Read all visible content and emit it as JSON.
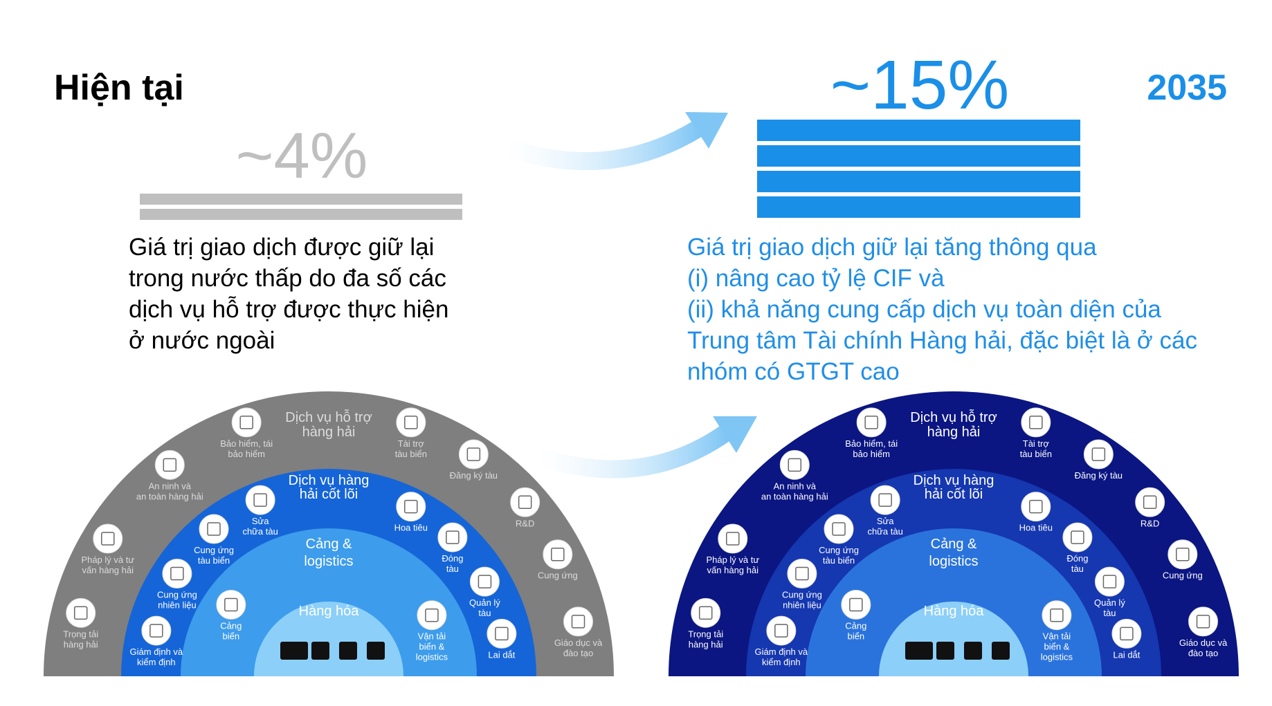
{
  "current": {
    "title": "Hiện tại",
    "share": "~4%",
    "lines": [
      "Giá trị giao dịch được giữ lại",
      "trong nước thấp do đa số các",
      "dịch vụ hỗ trợ được thực hiện",
      "ở nước ngoài"
    ]
  },
  "target": {
    "year": "2035",
    "share": "~15%",
    "lines": [
      "Giá trị giao dịch giữ lại tăng thông qua",
      "(i) nâng cao tỷ lệ CIF và",
      "(ii) khả năng cung cấp dịch vụ toàn diện của",
      "Trung tâm Tài chính Hàng hải, đặc biệt là ở các",
      "nhóm có GTGT cao"
    ]
  },
  "diagram": {
    "rings": [
      {
        "title": [
          "Dịch vụ hỗ trợ",
          "hàng hải"
        ],
        "items": [
          [
            "Trọng tải",
            "hàng hải"
          ],
          [
            "Pháp lý và tư",
            "vấn hàng hải"
          ],
          [
            "An ninh và",
            "an toàn hàng hải"
          ],
          [
            "Bảo hiểm, tái",
            "bảo hiểm"
          ],
          [
            "Tài  trợ",
            "tàu biển"
          ],
          [
            "Đăng ký tàu"
          ],
          [
            "R&D"
          ],
          [
            "Cung ứng"
          ],
          [
            "Giáo dục và",
            "đào tạo"
          ]
        ]
      },
      {
        "title": [
          "Dịch vụ hàng",
          "hải cốt lõi"
        ],
        "items": [
          [
            "Giám định và",
            "kiểm định"
          ],
          [
            "Cung ứng",
            "nhiên liệu"
          ],
          [
            "Cung ứng",
            "tàu biển"
          ],
          [
            "Sửa",
            "chữa tàu"
          ],
          [
            "Hoa tiêu"
          ],
          [
            "Đóng",
            "tàu"
          ],
          [
            "Quản lý",
            "tàu"
          ],
          [
            "Lai dắt"
          ]
        ]
      },
      {
        "title": [
          "Cảng &",
          "logistics"
        ],
        "items": [
          [
            "Cảng",
            "biển"
          ],
          [
            "Vận tải",
            "biển &",
            "logistics"
          ]
        ]
      },
      {
        "title": [
          "Hàng hóa"
        ],
        "items": []
      }
    ]
  }
}
